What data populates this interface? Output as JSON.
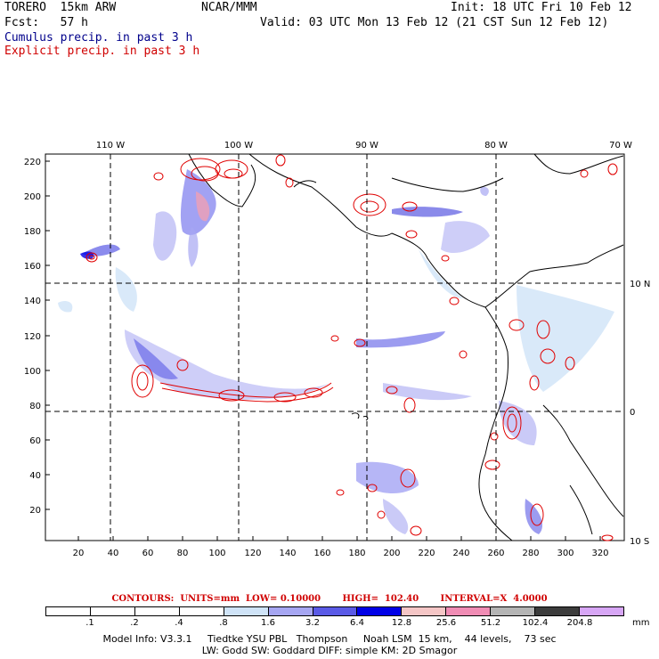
{
  "header": {
    "model": "TORERO  15km ARW",
    "org": "NCAR/MMM",
    "init": "Init: 18 UTC Fri 10 Feb 12",
    "fcst": "Fcst:   57 h",
    "valid": "Valid: 03 UTC Mon 13 Feb 12 (21 CST Sun 12 Feb 12)",
    "legend_cumulus": "Cumulus precip. in past 3 h",
    "legend_explicit": "Explicit precip. in past 3 h"
  },
  "map": {
    "lon_labels": [
      "110 W",
      "100 W",
      "90 W",
      "80 W",
      "70 W"
    ],
    "lat_labels_right": [
      "10 N",
      "0",
      "10 S"
    ],
    "y_ticks": [
      "220",
      "200",
      "180",
      "160",
      "140",
      "120",
      "100",
      "80",
      "60",
      "40",
      "20"
    ],
    "x_ticks": [
      "20",
      "40",
      "60",
      "80",
      "100",
      "120",
      "140",
      "160",
      "180",
      "200",
      "220",
      "240",
      "260",
      "280",
      "300",
      "320"
    ]
  },
  "contour_info": "CONTOURS:  UNITS=mm  LOW= 0.10000       HIGH=  102.40       INTERVAL=X  4.0000",
  "colorbar": {
    "labels": [
      ".1",
      ".2",
      ".4",
      ".8",
      "1.6",
      "3.2",
      "6.4",
      "12.8",
      "25.6",
      "51.2",
      "102.4",
      "204.8"
    ],
    "colors": [
      "#ffffff",
      "#ffffff",
      "#ffffff",
      "#ffffff",
      "#cfe3f7",
      "#a6a6f2",
      "#5a5ae6",
      "#0000e6",
      "#f5c6c6",
      "#f08cb4",
      "#b4b4b4",
      "#3c3c3c",
      "#d7a6f5"
    ],
    "units": "mm"
  },
  "footer": {
    "line1": "Model Info: V3.3.1     Tiedtke YSU PBL   Thompson     Noah LSM  15 km,    44 levels,    73 sec",
    "line2": "LW: Godd SW: Goddard DIFF: simple KM: 2D Smagor"
  }
}
